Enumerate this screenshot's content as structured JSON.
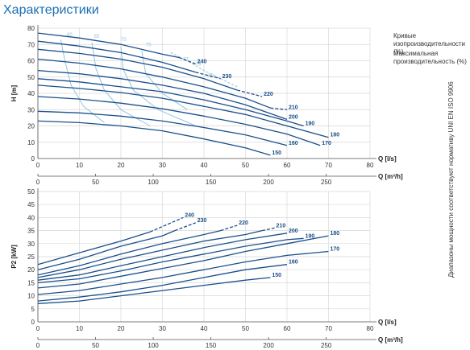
{
  "page_title": "Характеристики",
  "legend": {
    "efficiency_curves": "Кривые изопроизводительности (%)",
    "max_efficiency": "Максимальная производительность (%)"
  },
  "side_note": "Диапазоны мощности соответствуют нормативу UNI EN ISO 9906",
  "colors": {
    "curve": "#1a4f8a",
    "efficiency": "#8fc5e0",
    "grid": "#d8d8d8",
    "title": "#1a6fb5"
  },
  "chart_data": [
    {
      "type": "line",
      "xlabel": "Q [l/s]",
      "x2label": "Q [m³/h]",
      "ylabel": "H [m]",
      "xlim": [
        0,
        80
      ],
      "ylim": [
        0,
        80
      ],
      "x_ticks": [
        0,
        10,
        20,
        30,
        40,
        50,
        60,
        70,
        80
      ],
      "y_ticks": [
        0,
        10,
        20,
        30,
        40,
        50,
        60,
        70,
        80
      ],
      "x2_ticks": [
        0,
        50,
        100,
        150,
        200,
        250
      ],
      "grid": true,
      "series": [
        {
          "name": "240",
          "points": [
            [
              0,
              77
            ],
            [
              10,
              74
            ],
            [
              20,
              70
            ],
            [
              30,
              64
            ],
            [
              34,
              62
            ]
          ],
          "dash_to": [
            [
              34,
              62
            ],
            [
              38,
              58
            ]
          ]
        },
        {
          "name": "230",
          "points": [
            [
              0,
              72
            ],
            [
              10,
              69
            ],
            [
              20,
              65
            ],
            [
              30,
              59
            ],
            [
              38,
              53
            ]
          ],
          "dash_to": [
            [
              38,
              53
            ],
            [
              44,
              49
            ]
          ]
        },
        {
          "name": "220",
          "points": [
            [
              0,
              67
            ],
            [
              10,
              64.5
            ],
            [
              20,
              61
            ],
            [
              30,
              56
            ],
            [
              40,
              49
            ],
            [
              48,
              42
            ]
          ],
          "dash_to": [
            [
              48,
              42
            ],
            [
              54,
              38
            ]
          ]
        },
        {
          "name": "210",
          "points": [
            [
              0,
              61
            ],
            [
              10,
              58.5
            ],
            [
              20,
              55
            ],
            [
              30,
              50
            ],
            [
              40,
              44
            ],
            [
              50,
              37
            ],
            [
              56,
              31
            ]
          ],
          "dash_to": [
            [
              56,
              31
            ],
            [
              60,
              30
            ]
          ]
        },
        {
          "name": "200",
          "points": [
            [
              0,
              54
            ],
            [
              10,
              52
            ],
            [
              20,
              49
            ],
            [
              30,
              45
            ],
            [
              40,
              40
            ],
            [
              50,
              33
            ],
            [
              60,
              24
            ]
          ]
        },
        {
          "name": "190",
          "points": [
            [
              0,
              49
            ],
            [
              10,
              47
            ],
            [
              20,
              44
            ],
            [
              30,
              41
            ],
            [
              40,
              36
            ],
            [
              50,
              30
            ],
            [
              60,
              23
            ],
            [
              64,
              20
            ]
          ]
        },
        {
          "name": "180",
          "points": [
            [
              0,
              45
            ],
            [
              10,
              43
            ],
            [
              20,
              40.5
            ],
            [
              30,
              37
            ],
            [
              40,
              32
            ],
            [
              50,
              27
            ],
            [
              60,
              20
            ],
            [
              70,
              13
            ]
          ]
        },
        {
          "name": "170",
          "points": [
            [
              0,
              38
            ],
            [
              10,
              36.5
            ],
            [
              20,
              34
            ],
            [
              30,
              30.5
            ],
            [
              40,
              26
            ],
            [
              50,
              21
            ],
            [
              60,
              15
            ],
            [
              68,
              8
            ]
          ]
        },
        {
          "name": "160",
          "points": [
            [
              0,
              29
            ],
            [
              10,
              28
            ],
            [
              20,
              26
            ],
            [
              30,
              23
            ],
            [
              40,
              19
            ],
            [
              50,
              14.5
            ],
            [
              60,
              8
            ]
          ]
        },
        {
          "name": "150",
          "points": [
            [
              0,
              23
            ],
            [
              10,
              22
            ],
            [
              20,
              20
            ],
            [
              30,
              17
            ],
            [
              40,
              12
            ],
            [
              50,
              6.5
            ],
            [
              56,
              2
            ]
          ]
        }
      ],
      "efficiency_labels": [
        "60",
        "65",
        "70",
        "75",
        "77",
        "79",
        "80"
      ]
    },
    {
      "type": "line",
      "xlabel": "Q [l/s]",
      "x2label": "Q [m³/h]",
      "ylabel": "P2 [kW]",
      "xlim": [
        0,
        80
      ],
      "ylim": [
        0,
        50
      ],
      "x_ticks": [
        0,
        10,
        20,
        30,
        40,
        50,
        60,
        70,
        80
      ],
      "y_ticks": [
        0,
        5,
        10,
        15,
        20,
        25,
        30,
        35,
        40,
        45,
        50
      ],
      "x2_ticks": [
        0,
        50,
        100,
        150,
        200,
        250
      ],
      "grid": true,
      "series": [
        {
          "name": "240",
          "points": [
            [
              0,
              22
            ],
            [
              10,
              26.5
            ],
            [
              20,
              31
            ],
            [
              27,
              34.5
            ]
          ],
          "dash_to": [
            [
              27,
              34.5
            ],
            [
              35,
              40
            ]
          ]
        },
        {
          "name": "230",
          "points": [
            [
              0,
              20
            ],
            [
              10,
              24
            ],
            [
              20,
              29
            ],
            [
              30,
              33
            ],
            [
              33,
              35
            ]
          ],
          "dash_to": [
            [
              33,
              35
            ],
            [
              38,
              38
            ]
          ]
        },
        {
          "name": "220",
          "points": [
            [
              0,
              18
            ],
            [
              10,
              21.5
            ],
            [
              20,
              26
            ],
            [
              30,
              30
            ],
            [
              40,
              33.5
            ],
            [
              44,
              35
            ]
          ],
          "dash_to": [
            [
              44,
              35
            ],
            [
              48,
              37
            ]
          ]
        },
        {
          "name": "210",
          "points": [
            [
              0,
              17
            ],
            [
              10,
              20
            ],
            [
              20,
              24
            ],
            [
              30,
              27.5
            ],
            [
              40,
              31
            ],
            [
              50,
              33.5
            ],
            [
              54,
              35
            ]
          ],
          "dash_to": [
            [
              54,
              35
            ],
            [
              57,
              36
            ]
          ]
        },
        {
          "name": "200",
          "points": [
            [
              0,
              16
            ],
            [
              10,
              18
            ],
            [
              20,
              21.5
            ],
            [
              30,
              25
            ],
            [
              40,
              28.5
            ],
            [
              50,
              31.5
            ],
            [
              60,
              34
            ]
          ]
        },
        {
          "name": "190",
          "points": [
            [
              0,
              15
            ],
            [
              10,
              16.5
            ],
            [
              20,
              19.5
            ],
            [
              30,
              23
            ],
            [
              40,
              26
            ],
            [
              50,
              29
            ],
            [
              60,
              31.5
            ],
            [
              64,
              32
            ]
          ]
        },
        {
          "name": "180",
          "points": [
            [
              0,
              13
            ],
            [
              10,
              14.5
            ],
            [
              20,
              17.5
            ],
            [
              30,
              20.5
            ],
            [
              40,
              23.5
            ],
            [
              50,
              27
            ],
            [
              60,
              30
            ],
            [
              70,
              33
            ]
          ]
        },
        {
          "name": "170",
          "points": [
            [
              0,
              10.5
            ],
            [
              10,
              12
            ],
            [
              20,
              14.5
            ],
            [
              30,
              17
            ],
            [
              40,
              20
            ],
            [
              50,
              23
            ],
            [
              60,
              25.5
            ],
            [
              70,
              27
            ]
          ]
        },
        {
          "name": "160",
          "points": [
            [
              0,
              8
            ],
            [
              10,
              9.5
            ],
            [
              20,
              11.5
            ],
            [
              30,
              14
            ],
            [
              40,
              17
            ],
            [
              50,
              20
            ],
            [
              60,
              22
            ]
          ]
        },
        {
          "name": "150",
          "points": [
            [
              0,
              7
            ],
            [
              10,
              8
            ],
            [
              20,
              10
            ],
            [
              30,
              12
            ],
            [
              40,
              14
            ],
            [
              50,
              16
            ],
            [
              56,
              17
            ]
          ]
        }
      ]
    }
  ]
}
